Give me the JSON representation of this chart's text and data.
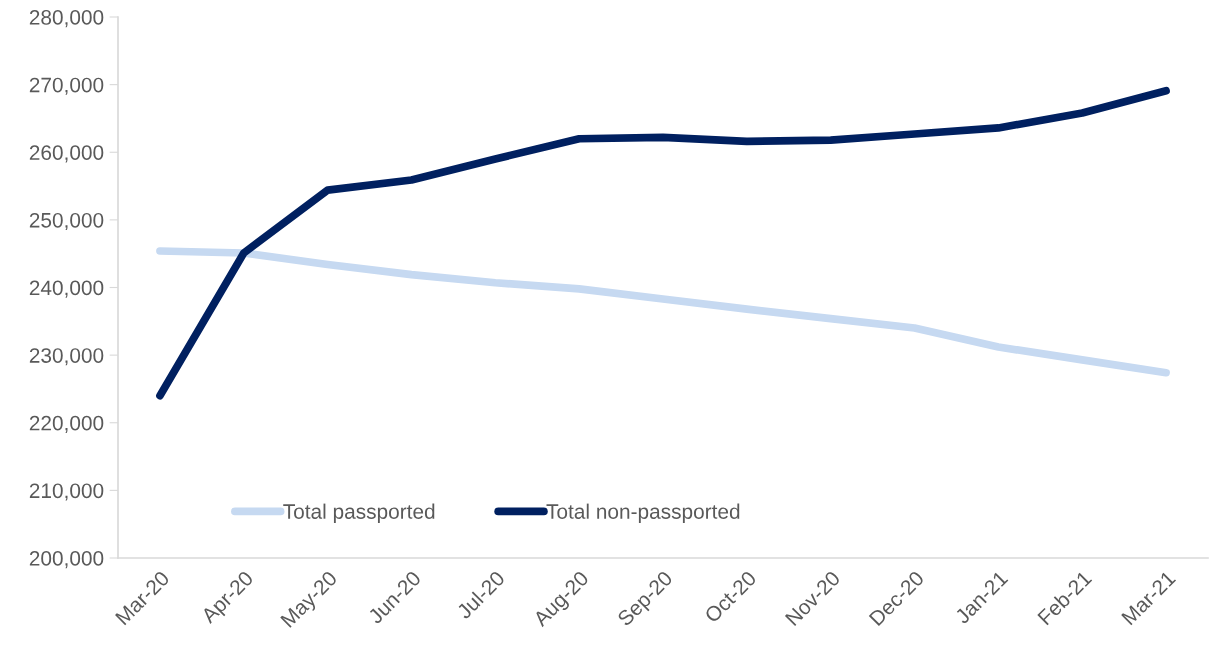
{
  "chart_data": {
    "type": "line",
    "categories": [
      "Mar-20",
      "Apr-20",
      "May-20",
      "Jun-20",
      "Jul-20",
      "Aug-20",
      "Sep-20",
      "Oct-20",
      "Nov-20",
      "Dec-20",
      "Jan-21",
      "Feb-21",
      "Mar-21"
    ],
    "series": [
      {
        "name": "Total passported",
        "color": "#c6d9f1",
        "values": [
          245400,
          245100,
          243400,
          241900,
          240700,
          239800,
          238300,
          236800,
          235400,
          234000,
          231200,
          229300,
          227400
        ]
      },
      {
        "name": "Total non-passported",
        "color": "#002060",
        "values": [
          224000,
          245100,
          254400,
          255900,
          259000,
          262000,
          262200,
          261600,
          261800,
          262700,
          263600,
          265800,
          269100
        ]
      }
    ],
    "ylim": [
      200000,
      280000
    ],
    "yticks": [
      {
        "value": 200000,
        "label": "200,000"
      },
      {
        "value": 210000,
        "label": "210,000"
      },
      {
        "value": 220000,
        "label": "220,000"
      },
      {
        "value": 230000,
        "label": "230,000"
      },
      {
        "value": 240000,
        "label": "240,000"
      },
      {
        "value": 250000,
        "label": "250,000"
      },
      {
        "value": 260000,
        "label": "260,000"
      },
      {
        "value": 270000,
        "label": "270,000"
      },
      {
        "value": 280000,
        "label": "280,000"
      }
    ],
    "grid": false,
    "legend": "bottom left",
    "marker": "none",
    "line_style": "solid"
  }
}
